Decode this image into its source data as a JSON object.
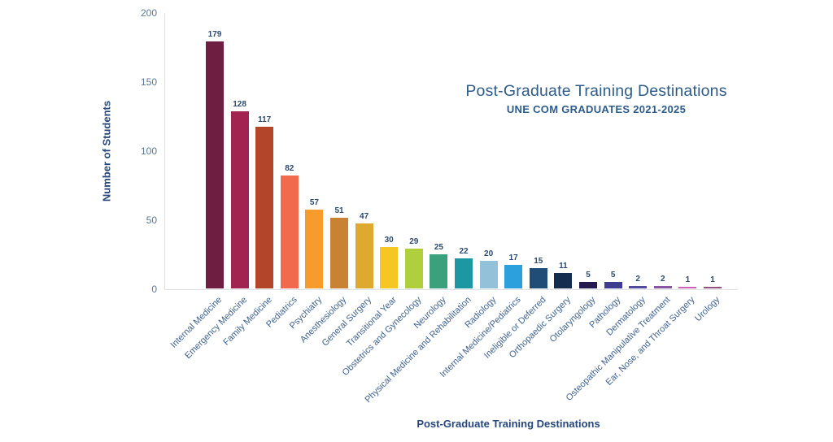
{
  "chart_data": {
    "type": "bar",
    "title": "Post-Graduate Training Destinations",
    "subtitle": "UNE COM GRADUATES 2021-2025",
    "xlabel": "Post-Graduate Training Destinations",
    "ylabel": "Number of Students",
    "ylim": [
      0,
      200
    ],
    "yticks": [
      0,
      50,
      100,
      150,
      200
    ],
    "grid": false,
    "legend": "none",
    "categories": [
      "Internal Medicine",
      "Emergency Medicine",
      "Family Medicine",
      "Pediatrics",
      "Psychiatry",
      "Anesthesiology",
      "General Surgery",
      "Transitional Year",
      "Obstetrics and Gynecology",
      "Neurology",
      "Physical Medicine and Rehabilitation",
      "Radiology",
      "Internal Medicine/Pediatrics",
      "Ineligible or Deferred",
      "Orthopaedic Surgery",
      "Otolaryngology",
      "Pathology",
      "Dermatology",
      "Osteopathic Manipulative Treatment",
      "Ear, Nose, and Throat Surgery",
      "Urology"
    ],
    "values": [
      179,
      128,
      117,
      82,
      57,
      51,
      47,
      30,
      29,
      25,
      22,
      20,
      17,
      15,
      11,
      5,
      5,
      2,
      2,
      1,
      1
    ],
    "bar_colors": [
      "#6e1e41",
      "#a02350",
      "#b2452a",
      "#f26a4d",
      "#f89b2d",
      "#c98133",
      "#dfa92f",
      "#f6c723",
      "#afcf3d",
      "#3ba17d",
      "#1d97a2",
      "#94c1da",
      "#2ba0dc",
      "#1f4d78",
      "#142d4c",
      "#241a4f",
      "#3f3d90",
      "#514b9f",
      "#8a55a2",
      "#cf62b8",
      "#94517f"
    ],
    "text_colors": {
      "title": "#2e5c8a",
      "axis_title": "#26477c",
      "tick_label": "#5b7895",
      "category_label": "#3f628e",
      "value_label": "#2c4a70",
      "axis_line": "#dcdfe3"
    }
  }
}
